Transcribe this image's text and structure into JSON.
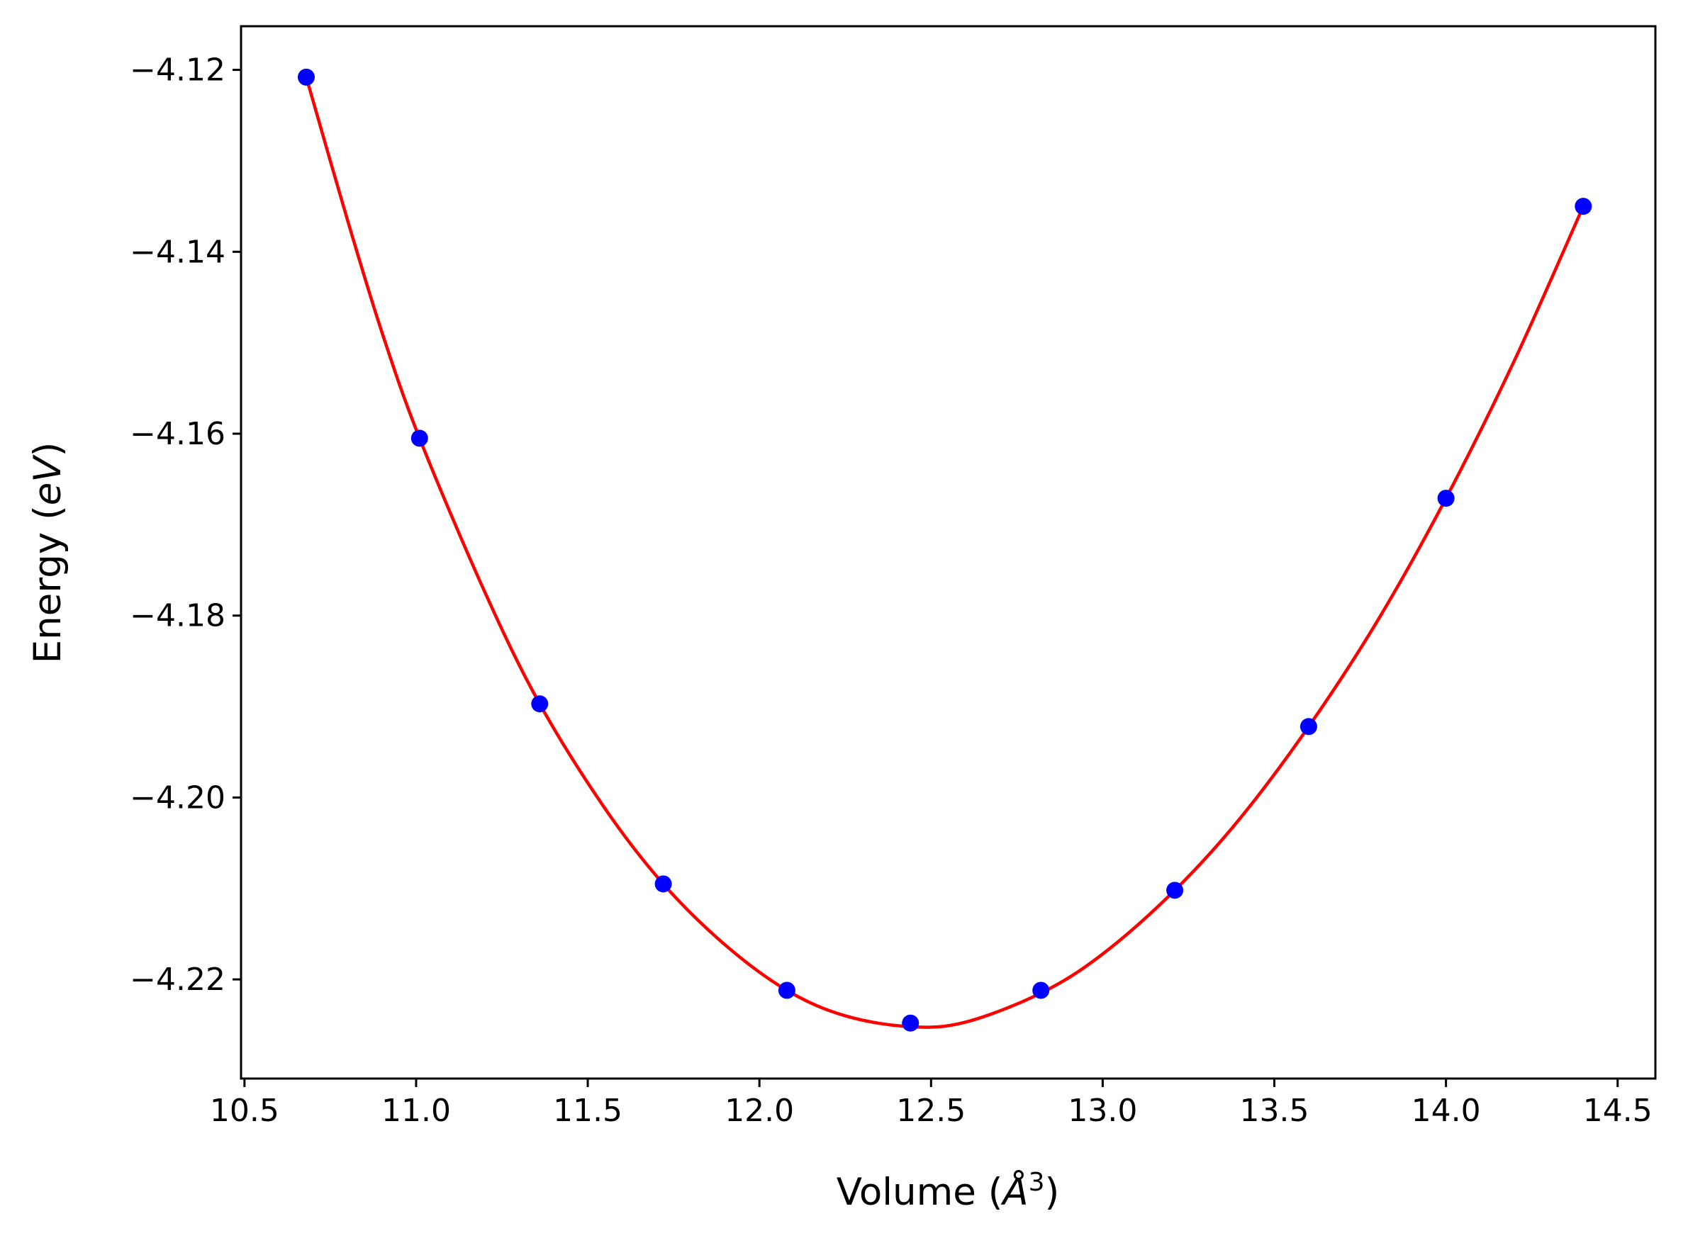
{
  "chart_data": {
    "type": "line",
    "title": "",
    "xlabel": "Volume (Å³)",
    "xlabel_parts": {
      "prefix": "Volume (",
      "unit": "Å",
      "sup": "3",
      "suffix": ")"
    },
    "ylabel": "Energy (eV)",
    "ylabel_parts": {
      "prefix": "Energy (",
      "unit": "eV",
      "suffix": ")"
    },
    "xlim": [
      10.49,
      14.61
    ],
    "ylim": [
      -4.2309,
      -4.1152
    ],
    "x_ticks": [
      "10.5",
      "11.0",
      "11.5",
      "12.0",
      "12.5",
      "13.0",
      "13.5",
      "14.0",
      "14.5"
    ],
    "x_tick_values": [
      10.5,
      11.0,
      11.5,
      12.0,
      12.5,
      13.0,
      13.5,
      14.0,
      14.5
    ],
    "y_ticks": [
      "−4.12",
      "−4.14",
      "−4.16",
      "−4.18",
      "−4.20",
      "−4.22"
    ],
    "y_tick_values": [
      -4.12,
      -4.14,
      -4.16,
      -4.18,
      -4.2,
      -4.22
    ],
    "grid": false,
    "series": [
      {
        "kind": "scatter",
        "color": "#0000ff",
        "x": [
          10.68,
          11.01,
          11.36,
          11.72,
          12.08,
          12.44,
          12.82,
          13.21,
          13.6,
          14.0,
          14.4
        ],
        "y": [
          -4.1208,
          -4.1605,
          -4.1897,
          -4.2095,
          -4.2212,
          -4.2248,
          -4.2212,
          -4.2102,
          -4.1922,
          -4.1671,
          -4.135
        ]
      },
      {
        "kind": "line",
        "color": "#ff0000",
        "x": [
          10.68,
          10.8,
          10.9,
          11.01,
          11.2,
          11.36,
          11.55,
          11.72,
          11.9,
          12.08,
          12.25,
          12.44,
          12.6,
          12.82,
          13.0,
          13.21,
          13.4,
          13.6,
          13.8,
          14.0,
          14.2,
          14.4
        ],
        "y": [
          -4.1208,
          -4.1365,
          -4.1488,
          -4.1605,
          -4.1774,
          -4.1897,
          -4.2012,
          -4.2095,
          -4.2162,
          -4.2212,
          -4.224,
          -4.2252,
          -4.2247,
          -4.2215,
          -4.2172,
          -4.2102,
          -4.2023,
          -4.1922,
          -4.1806,
          -4.1671,
          -4.1519,
          -4.135
        ]
      }
    ]
  }
}
